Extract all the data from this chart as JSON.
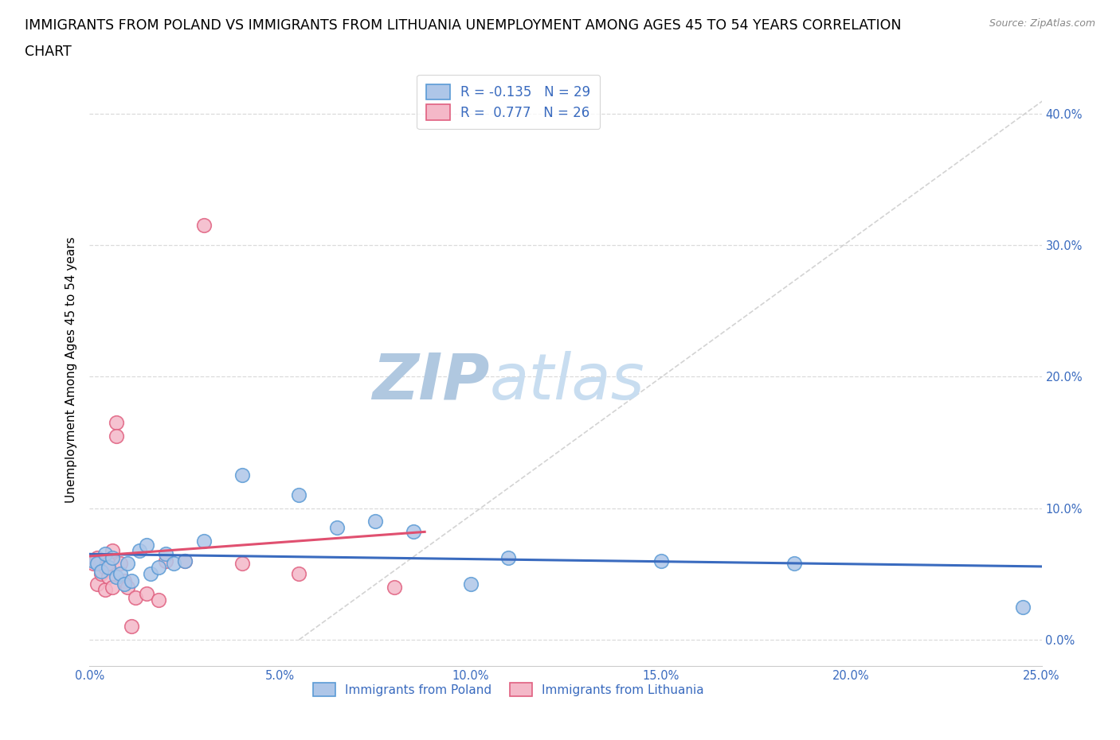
{
  "title_line1": "IMMIGRANTS FROM POLAND VS IMMIGRANTS FROM LITHUANIA UNEMPLOYMENT AMONG AGES 45 TO 54 YEARS CORRELATION",
  "title_line2": "CHART",
  "source_text": "Source: ZipAtlas.com",
  "xlabel": "Immigrants from Poland",
  "ylabel": "Unemployment Among Ages 45 to 54 years",
  "xlim": [
    0.0,
    0.25
  ],
  "ylim": [
    -0.02,
    0.43
  ],
  "xticks": [
    0.0,
    0.05,
    0.1,
    0.15,
    0.2,
    0.25
  ],
  "yticks_right": [
    0.0,
    0.1,
    0.2,
    0.3,
    0.4
  ],
  "poland_color": "#aec6e8",
  "poland_edge_color": "#5b9bd5",
  "lithuania_color": "#f4b8c8",
  "lithuania_edge_color": "#e06080",
  "poland_line_color": "#3a6bbf",
  "lithuania_line_color": "#e05070",
  "diagonal_line_color": "#c8c8c8",
  "grid_color": "#d8d8d8",
  "watermark_color": "#c8d8ea",
  "legend_R_color": "#3a6bbf",
  "R_poland": -0.135,
  "N_poland": 29,
  "R_lithuania": 0.777,
  "N_lithuania": 26,
  "poland_x": [
    0.001,
    0.002,
    0.003,
    0.004,
    0.005,
    0.006,
    0.007,
    0.008,
    0.009,
    0.01,
    0.011,
    0.013,
    0.015,
    0.016,
    0.018,
    0.02,
    0.022,
    0.025,
    0.03,
    0.04,
    0.055,
    0.065,
    0.075,
    0.085,
    0.1,
    0.11,
    0.15,
    0.185,
    0.245
  ],
  "poland_y": [
    0.06,
    0.058,
    0.052,
    0.065,
    0.055,
    0.062,
    0.048,
    0.05,
    0.042,
    0.058,
    0.045,
    0.068,
    0.072,
    0.05,
    0.055,
    0.065,
    0.058,
    0.06,
    0.075,
    0.125,
    0.11,
    0.085,
    0.09,
    0.082,
    0.042,
    0.062,
    0.06,
    0.058,
    0.025
  ],
  "lithuania_x": [
    0.001,
    0.002,
    0.002,
    0.003,
    0.003,
    0.004,
    0.004,
    0.005,
    0.005,
    0.006,
    0.006,
    0.007,
    0.007,
    0.008,
    0.009,
    0.01,
    0.011,
    0.012,
    0.015,
    0.018,
    0.02,
    0.025,
    0.03,
    0.04,
    0.055,
    0.08
  ],
  "lithuania_y": [
    0.058,
    0.062,
    0.042,
    0.05,
    0.06,
    0.055,
    0.038,
    0.048,
    0.058,
    0.068,
    0.04,
    0.165,
    0.155,
    0.058,
    0.045,
    0.04,
    0.01,
    0.032,
    0.035,
    0.03,
    0.06,
    0.06,
    0.315,
    0.058,
    0.05,
    0.04
  ],
  "background_color": "#ffffff",
  "title_fontsize": 12.5,
  "axis_label_fontsize": 11,
  "tick_fontsize": 10.5
}
